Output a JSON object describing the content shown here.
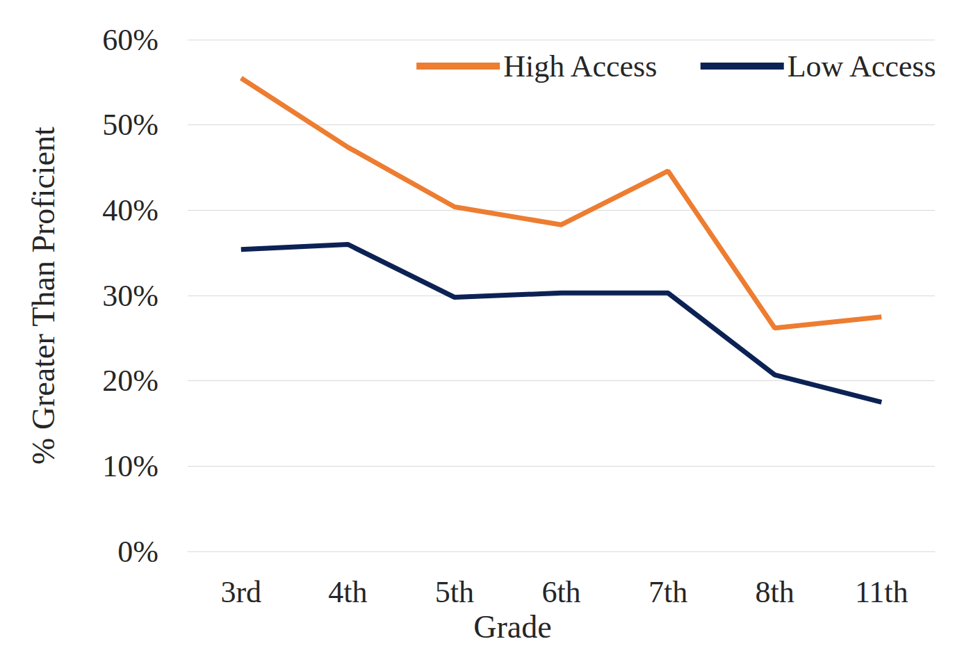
{
  "chart_data": {
    "type": "line",
    "x_label": "Grade",
    "y_label": "% Greater Than Proficient",
    "categories": [
      "3rd",
      "4th",
      "5th",
      "6th",
      "7th",
      "8th",
      "11th"
    ],
    "series": [
      {
        "name": "High Access",
        "color": "#ED7D31",
        "values": [
          55.5,
          47.4,
          40.4,
          38.3,
          44.6,
          26.2,
          27.5
        ]
      },
      {
        "name": "Low Access",
        "color": "#0C2254",
        "values": [
          35.4,
          36.0,
          29.8,
          30.3,
          30.3,
          20.7,
          17.5
        ]
      }
    ],
    "ylim": [
      0,
      60
    ],
    "yticks": [
      {
        "value": 0,
        "label": "0%"
      },
      {
        "value": 10,
        "label": "10%"
      },
      {
        "value": 20,
        "label": "20%"
      },
      {
        "value": 30,
        "label": "30%"
      },
      {
        "value": 40,
        "label": "40%"
      },
      {
        "value": 50,
        "label": "50%"
      },
      {
        "value": 60,
        "label": "60%"
      }
    ],
    "grid": true,
    "legend": "upper right"
  }
}
